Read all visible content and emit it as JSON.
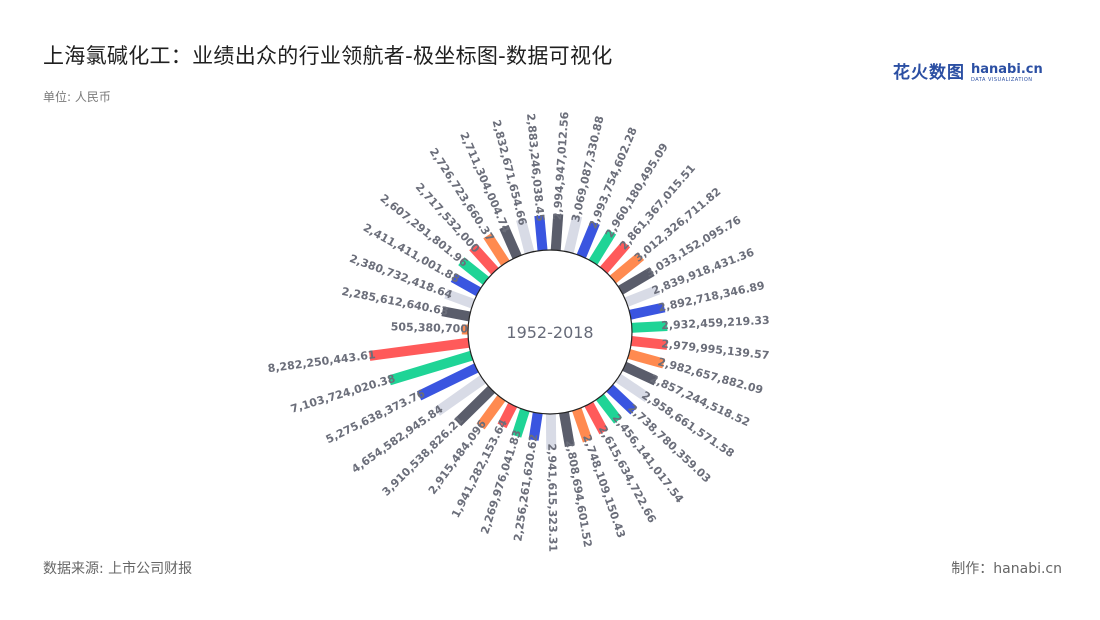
{
  "header": {
    "title": "上海氯碱化工：业绩出众的行业领航者-极坐标图-数据可视化",
    "unit": "单位: 人民币"
  },
  "logo": {
    "cn_text": "花火数图",
    "en_text": "hanabi.cn",
    "en_sub": "DATA VISUALIZATION",
    "color": "#2b4fa3"
  },
  "footer": {
    "source": "数据来源: 上市公司财报",
    "maker": "制作：hanabi.cn"
  },
  "watermark_text": "花火数图 hanabi.cn",
  "chart_data": {
    "type": "bar",
    "coordinate": "polar",
    "center_label": "1952-2018",
    "palette": [
      "#5a5d6b",
      "#d8dbe6",
      "#3a55e0",
      "#1fd496",
      "#ff5a5a",
      "#ff8a50"
    ],
    "series": [
      {
        "values": [
          "2,994,947,012.56",
          "3,069,087,330.88",
          "2,993,754,602.28",
          "2,960,180,495.09",
          "2,861,367,015.51",
          "3,012,326,711.82",
          "3,033,152,095.76",
          "2,839,918,431.36",
          "2,892,718,346.89",
          "2,932,459,219.33",
          "2,979,995,139.57",
          "2,982,657,882.09",
          "2,857,244,518.52",
          "2,958,661,571.58",
          "2,738,780,359.03",
          "2,456,141,017.54",
          "2,615,634,722.66",
          "2,748,109,150.43",
          "2,808,694,601.52",
          "2,941,615,323.31",
          "2,256,261,620.62",
          "2,269,976,041.83",
          "1,941,282,153.64",
          "2,915,484,096",
          "3,910,538,826.21",
          "4,654,582,945.84",
          "5,275,638,373.76",
          "7,103,724,020.38",
          "8,282,250,443.61",
          "505,380,700",
          "2,285,612,640.63",
          "2,380,732,418.64",
          "2,411,411,001.88",
          "2,607,291,801.96",
          "2,717,532,000",
          "2,726,723,660.37",
          "2,711,304,004.74",
          "2,832,671,654.66",
          "2,883,246,038.45"
        ]
      }
    ]
  }
}
